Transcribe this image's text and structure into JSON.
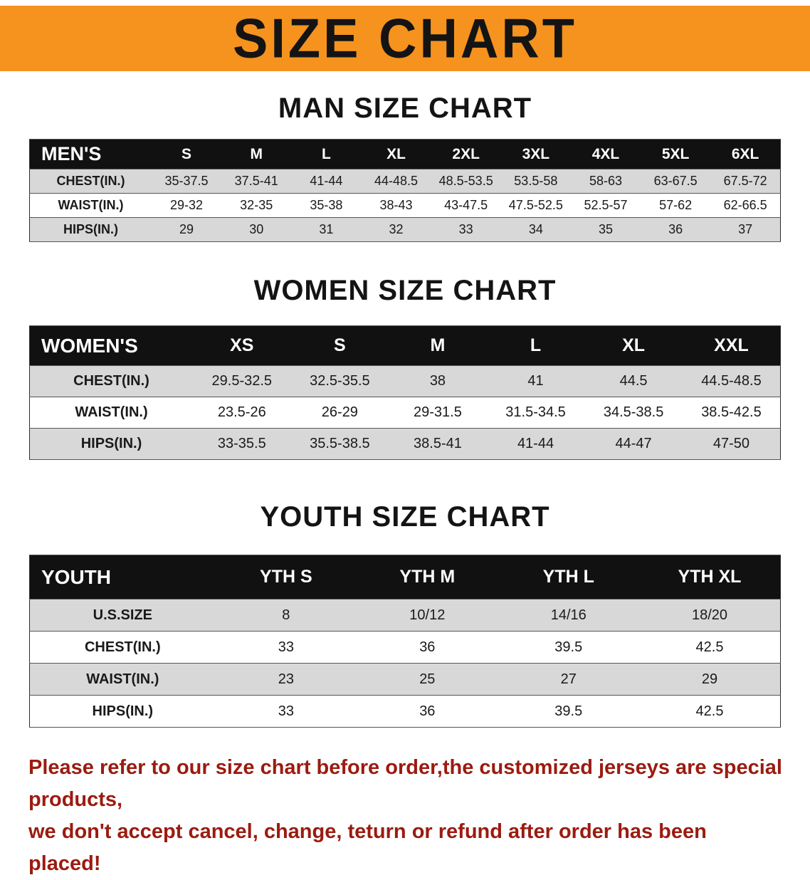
{
  "banner": {
    "title": "SIZE CHART",
    "bg_color": "#f6921e",
    "text_color": "#141414"
  },
  "colors": {
    "table_header_bg": "#111111",
    "table_header_text": "#ffffff",
    "row_alt_gray": "#d8d8d8",
    "footer_text": "#9b1b10"
  },
  "chart_data": [
    {
      "type": "table",
      "title": "MAN SIZE CHART",
      "header": [
        "MEN'S",
        "S",
        "M",
        "L",
        "XL",
        "2XL",
        "3XL",
        "4XL",
        "5XL",
        "6XL"
      ],
      "rows": [
        [
          "CHEST(IN.)",
          "35-37.5",
          "37.5-41",
          "41-44",
          "44-48.5",
          "48.5-53.5",
          "53.5-58",
          "58-63",
          "63-67.5",
          "67.5-72"
        ],
        [
          "WAIST(IN.)",
          "29-32",
          "32-35",
          "35-38",
          "38-43",
          "43-47.5",
          "47.5-52.5",
          "52.5-57",
          "57-62",
          "62-66.5"
        ],
        [
          "HIPS(IN.)",
          "29",
          "30",
          "31",
          "32",
          "33",
          "34",
          "35",
          "36",
          "37"
        ]
      ]
    },
    {
      "type": "table",
      "title": "WOMEN SIZE CHART",
      "header": [
        "WOMEN'S",
        "XS",
        "S",
        "M",
        "L",
        "XL",
        "XXL"
      ],
      "rows": [
        [
          "CHEST(IN.)",
          "29.5-32.5",
          "32.5-35.5",
          "38",
          "41",
          "44.5",
          "44.5-48.5"
        ],
        [
          "WAIST(IN.)",
          "23.5-26",
          "26-29",
          "29-31.5",
          "31.5-34.5",
          "34.5-38.5",
          "38.5-42.5"
        ],
        [
          "HIPS(IN.)",
          "33-35.5",
          "35.5-38.5",
          "38.5-41",
          "41-44",
          "44-47",
          "47-50"
        ]
      ]
    },
    {
      "type": "table",
      "title": "YOUTH SIZE CHART",
      "header": [
        "YOUTH",
        "YTH S",
        "YTH M",
        "YTH L",
        "YTH XL"
      ],
      "rows": [
        [
          "U.S.SIZE",
          "8",
          "10/12",
          "14/16",
          "18/20"
        ],
        [
          "CHEST(IN.)",
          "33",
          "36",
          "39.5",
          "42.5"
        ],
        [
          "WAIST(IN.)",
          "23",
          "25",
          "27",
          "29"
        ],
        [
          "HIPS(IN.)",
          "33",
          "36",
          "39.5",
          "42.5"
        ]
      ]
    }
  ],
  "footer": {
    "line1": "Please refer to our size chart before order,the customized jerseys are special products,",
    "line2": "we don't accept cancel, change, teturn or refund after order has been placed!"
  }
}
